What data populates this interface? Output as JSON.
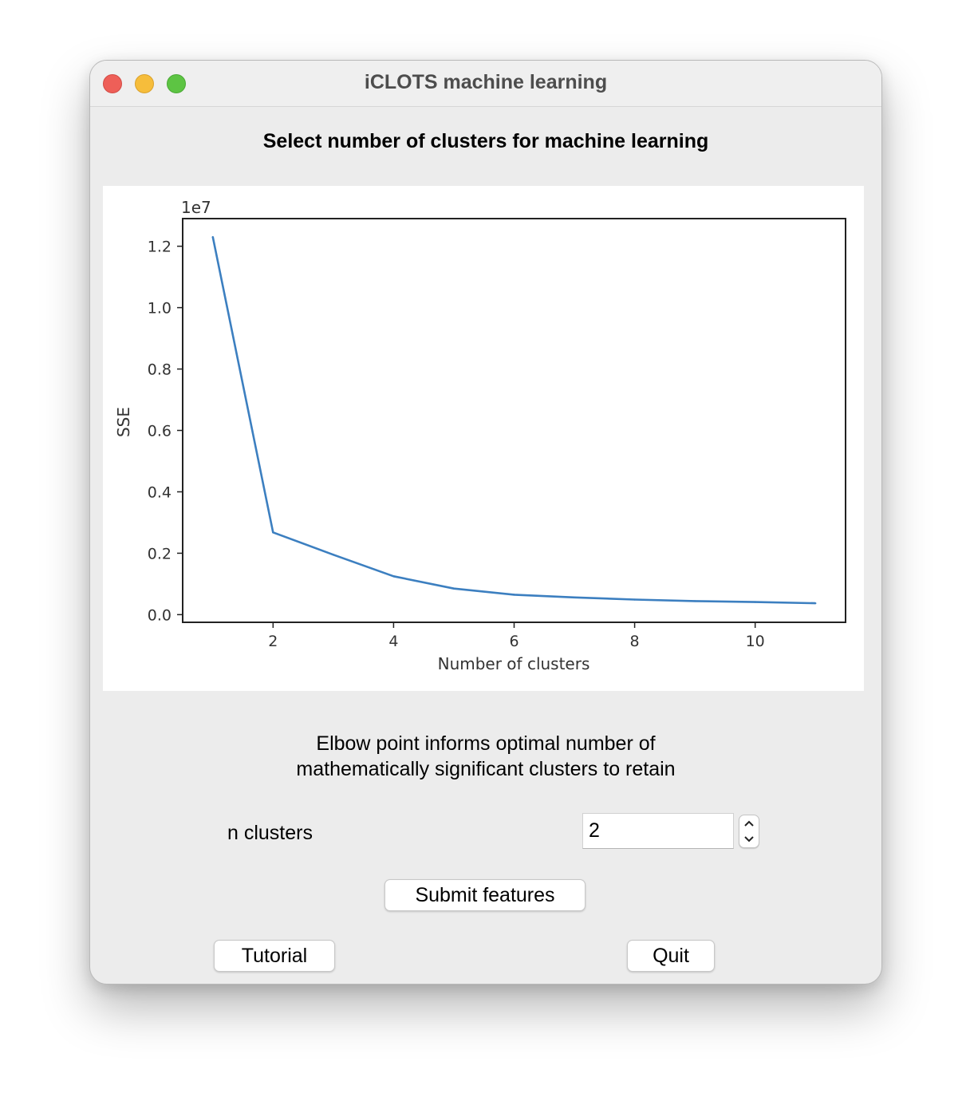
{
  "window": {
    "title": "iCLOTS machine learning",
    "traffic_lights": [
      "close",
      "minimize",
      "maximize"
    ]
  },
  "heading": "Select number of clusters for machine learning",
  "chart_data": {
    "type": "line",
    "xlabel": "Number of clusters",
    "ylabel": "SSE",
    "offset_label": "1e7",
    "xlim": [
      0.5,
      11.5
    ],
    "ylim": [
      -0.025,
      1.29
    ],
    "xticks": [
      2,
      4,
      6,
      8,
      10
    ],
    "yticks": [
      0.0,
      0.2,
      0.4,
      0.6,
      0.8,
      1.0,
      1.2
    ],
    "ytick_labels": [
      "0.0",
      "0.2",
      "0.4",
      "0.6",
      "0.8",
      "1.0",
      "1.2"
    ],
    "line_color": "#3c7fc0",
    "grid": false,
    "x": [
      1,
      2,
      3,
      4,
      5,
      6,
      7,
      8,
      9,
      10,
      11
    ],
    "values": [
      1.23,
      0.268,
      0.195,
      0.125,
      0.085,
      0.065,
      0.056,
      0.049,
      0.044,
      0.041,
      0.037
    ]
  },
  "description": {
    "line1": "Elbow point informs optimal number of",
    "line2": "mathematically significant clusters to retain"
  },
  "n_clusters": {
    "label": "n clusters",
    "value": "2"
  },
  "buttons": {
    "submit": "Submit features",
    "tutorial": "Tutorial",
    "quit": "Quit"
  }
}
